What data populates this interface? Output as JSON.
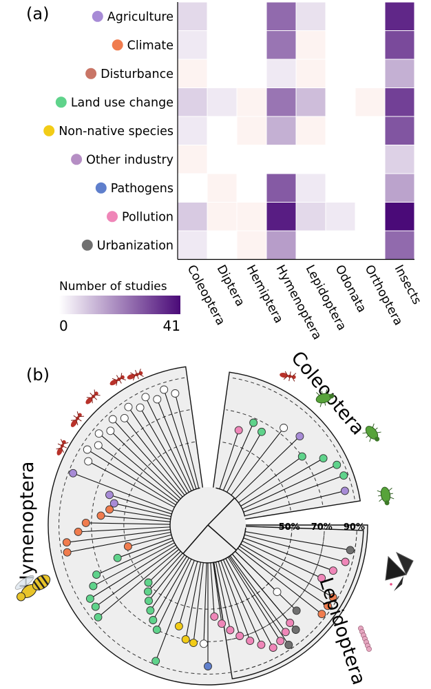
{
  "panel_a": {
    "label": "(a)",
    "threats": [
      {
        "name": "Agriculture",
        "color": "#a78bd6"
      },
      {
        "name": "Climate",
        "color": "#f07c4e"
      },
      {
        "name": "Disturbance",
        "color": "#c97566"
      },
      {
        "name": "Land use change",
        "color": "#5fd38b"
      },
      {
        "name": "Non-native species",
        "color": "#f2cc17"
      },
      {
        "name": "Other industry",
        "color": "#b58ec4"
      },
      {
        "name": "Pathogens",
        "color": "#5f7fcc"
      },
      {
        "name": "Pollution",
        "color": "#ef86b8"
      },
      {
        "name": "Urbanization",
        "color": "#707070"
      }
    ],
    "orders": [
      "Coleoptera",
      "Diptera",
      "Hemiptera",
      "Hymenoptera",
      "Lepidoptera",
      "Odonata",
      "Orthoptera",
      "Insects"
    ],
    "legend": {
      "title": "Number of studies",
      "min_label": "0",
      "max_label": "41",
      "min": 0,
      "max": 41,
      "low_color": "#ffffff",
      "high_color": "#4a0a78"
    }
  },
  "chart_data": {
    "type": "heatmap",
    "title": "",
    "rows": [
      "Agriculture",
      "Climate",
      "Disturbance",
      "Land use change",
      "Non-native species",
      "Other industry",
      "Pathogens",
      "Pollution",
      "Urbanization"
    ],
    "columns": [
      "Coleoptera",
      "Diptera",
      "Hemiptera",
      "Hymenoptera",
      "Lepidoptera",
      "Odonata",
      "Orthoptera",
      "Insects"
    ],
    "values": [
      [
        4,
        0,
        0,
        22,
        3,
        0,
        0,
        35
      ],
      [
        2,
        0,
        0,
        20,
        1,
        0,
        0,
        28
      ],
      [
        1,
        0,
        0,
        2,
        1,
        0,
        0,
        10
      ],
      [
        5,
        2,
        1,
        20,
        8,
        0,
        1,
        30
      ],
      [
        2,
        0,
        1,
        10,
        1,
        0,
        0,
        26
      ],
      [
        1,
        0,
        0,
        0,
        0,
        0,
        0,
        5
      ],
      [
        0,
        1,
        0,
        25,
        2,
        0,
        0,
        12
      ],
      [
        6,
        1,
        1,
        37,
        4,
        2,
        0,
        41
      ],
      [
        2,
        0,
        1,
        13,
        0,
        0,
        0,
        22
      ]
    ],
    "colorbar": {
      "label": "Number of studies",
      "min": 0,
      "max": 41
    }
  },
  "panel_b": {
    "label": "(b)",
    "rings": [
      "50%",
      "70%",
      "90%"
    ],
    "clades": [
      {
        "name": "Hymenoptera",
        "start_deg": 98,
        "end_deg": 360
      },
      {
        "name": "Coleoptera",
        "start_deg": 9,
        "end_deg": 82
      },
      {
        "name": "Lepidoptera",
        "start_deg": 279,
        "end_deg": 358
      }
    ],
    "species": [
      {
        "clade": "Hymenoptera",
        "deg": 104,
        "level": 0.87,
        "threat": null
      },
      {
        "clade": "Hymenoptera",
        "deg": 108,
        "level": 0.93,
        "threat": null
      },
      {
        "clade": "Hymenoptera",
        "deg": 112,
        "level": 0.87,
        "threat": null
      },
      {
        "clade": "Hymenoptera",
        "deg": 116,
        "level": 0.93,
        "threat": null
      },
      {
        "clade": "Hymenoptera",
        "deg": 120,
        "level": 0.87,
        "threat": null
      },
      {
        "clade": "Hymenoptera",
        "deg": 124,
        "level": 0.93,
        "threat": null
      },
      {
        "clade": "Hymenoptera",
        "deg": 128,
        "level": 0.87,
        "threat": null
      },
      {
        "clade": "Hymenoptera",
        "deg": 132,
        "level": 0.93,
        "threat": null
      },
      {
        "clade": "Hymenoptera",
        "deg": 136,
        "level": 0.87,
        "threat": null
      },
      {
        "clade": "Hymenoptera",
        "deg": 140,
        "level": 0.93,
        "threat": null
      },
      {
        "clade": "Hymenoptera",
        "deg": 144,
        "level": 0.87,
        "threat": null
      },
      {
        "clade": "Hymenoptera",
        "deg": 148,
        "level": 0.93,
        "threat": null
      },
      {
        "clade": "Hymenoptera",
        "deg": 152,
        "level": 0.87,
        "threat": null
      },
      {
        "clade": "Hymenoptera",
        "deg": 159,
        "level": 0.95,
        "threat": "Agriculture"
      },
      {
        "clade": "Hymenoptera",
        "deg": 163,
        "level": 0.58,
        "threat": "Agriculture"
      },
      {
        "clade": "Hymenoptera",
        "deg": 167,
        "level": 0.52,
        "threat": "Agriculture"
      },
      {
        "clade": "Hymenoptera",
        "deg": 171,
        "level": 0.55,
        "threat": "Climate"
      },
      {
        "clade": "Hymenoptera",
        "deg": 175,
        "level": 0.62,
        "threat": "Climate"
      },
      {
        "clade": "Hymenoptera",
        "deg": 179,
        "level": 0.75,
        "threat": "Climate"
      },
      {
        "clade": "Hymenoptera",
        "deg": 183,
        "level": 0.82,
        "threat": "Climate"
      },
      {
        "clade": "Hymenoptera",
        "deg": 187,
        "level": 0.93,
        "threat": "Climate"
      },
      {
        "clade": "Hymenoptera",
        "deg": 191,
        "level": 0.94,
        "threat": "Climate"
      },
      {
        "clade": "Hymenoptera",
        "deg": 195,
        "level": 0.4,
        "threat": "Climate"
      },
      {
        "clade": "Hymenoptera",
        "deg": 200,
        "level": 0.52,
        "threat": "Land use change"
      },
      {
        "clade": "Hymenoptera",
        "deg": 204,
        "level": 0.75,
        "threat": "Land use change"
      },
      {
        "clade": "Hymenoptera",
        "deg": 208,
        "level": 0.82,
        "threat": "Land use change"
      },
      {
        "clade": "Hymenoptera",
        "deg": 212,
        "level": 0.9,
        "threat": "Land use change"
      },
      {
        "clade": "Hymenoptera",
        "deg": 216,
        "level": 0.9,
        "threat": "Land use change"
      },
      {
        "clade": "Hymenoptera",
        "deg": 220,
        "level": 0.94,
        "threat": "Land use change"
      },
      {
        "clade": "Hymenoptera",
        "deg": 224,
        "level": 0.4,
        "threat": "Land use change"
      },
      {
        "clade": "Hymenoptera",
        "deg": 228,
        "level": 0.46,
        "threat": "Land use change"
      },
      {
        "clade": "Hymenoptera",
        "deg": 232,
        "level": 0.52,
        "threat": "Land use change"
      },
      {
        "clade": "Hymenoptera",
        "deg": 236,
        "level": 0.58,
        "threat": "Land use change"
      },
      {
        "clade": "Hymenoptera",
        "deg": 240,
        "level": 0.64,
        "threat": "Land use change"
      },
      {
        "clade": "Hymenoptera",
        "deg": 244,
        "level": 0.7,
        "threat": "Land use change"
      },
      {
        "clade": "Hymenoptera",
        "deg": 249,
        "level": 0.96,
        "threat": "Land use change"
      },
      {
        "clade": "Hymenoptera",
        "deg": 254,
        "level": 0.6,
        "threat": "Non-native species"
      },
      {
        "clade": "Hymenoptera",
        "deg": 259,
        "level": 0.7,
        "threat": "Non-native species"
      },
      {
        "clade": "Hymenoptera",
        "deg": 263,
        "level": 0.72,
        "threat": "Non-native species"
      },
      {
        "clade": "Hymenoptera",
        "deg": 268,
        "level": 0.72,
        "threat": null
      },
      {
        "clade": "Hymenoptera",
        "deg": 270,
        "level": 0.92,
        "threat": "Pathogens"
      },
      {
        "clade": "Hymenoptera",
        "deg": 274,
        "level": 0.48,
        "threat": "Pollution"
      },
      {
        "clade": "Hymenoptera",
        "deg": 278,
        "level": 0.55,
        "threat": "Pollution"
      },
      {
        "clade": "Hymenoptera",
        "deg": 282,
        "level": 0.62,
        "threat": "Pollution"
      },
      {
        "clade": "Hymenoptera",
        "deg": 286,
        "level": 0.69,
        "threat": "Pollution"
      },
      {
        "clade": "Hymenoptera",
        "deg": 290,
        "level": 0.76,
        "threat": "Pollution"
      },
      {
        "clade": "Hymenoptera",
        "deg": 294,
        "level": 0.83,
        "threat": "Pollution"
      },
      {
        "clade": "Hymenoptera",
        "deg": 298,
        "level": 0.9,
        "threat": "Pollution"
      },
      {
        "clade": "Hymenoptera",
        "deg": 302,
        "level": 0.88,
        "threat": "Pollution"
      },
      {
        "clade": "Hymenoptera",
        "deg": 306,
        "level": 0.84,
        "threat": "Pollution"
      },
      {
        "clade": "Hymenoptera",
        "deg": 310,
        "level": 0.8,
        "threat": "Pollution"
      },
      {
        "clade": "Hymenoptera",
        "deg": 316,
        "level": 0.76,
        "threat": "Urbanization"
      },
      {
        "clade": "Coleoptera",
        "deg": 14,
        "level": 0.92,
        "threat": "Agriculture"
      },
      {
        "clade": "Coleoptera",
        "deg": 20,
        "level": 0.95,
        "threat": "Land use change"
      },
      {
        "clade": "Coleoptera",
        "deg": 25,
        "level": 0.93,
        "threat": "Land use change"
      },
      {
        "clade": "Coleoptera",
        "deg": 30,
        "level": 0.85,
        "threat": "Land use change"
      },
      {
        "clade": "Coleoptera",
        "deg": 36,
        "level": 0.7,
        "threat": "Land use change"
      },
      {
        "clade": "Coleoptera",
        "deg": 44,
        "level": 0.8,
        "threat": "Agriculture"
      },
      {
        "clade": "Coleoptera",
        "deg": 52,
        "level": 0.76,
        "threat": null
      },
      {
        "clade": "Coleoptera",
        "deg": 60,
        "level": 0.62,
        "threat": "Land use change"
      },
      {
        "clade": "Coleoptera",
        "deg": 66,
        "level": 0.66,
        "threat": "Land use change"
      },
      {
        "clade": "Coleoptera",
        "deg": 72,
        "level": 0.55,
        "threat": "Pollution"
      },
      {
        "clade": "Lepidoptera",
        "deg": 350,
        "level": 0.95,
        "threat": "Urbanization"
      },
      {
        "clade": "Lepidoptera",
        "deg": 345,
        "level": 0.93,
        "threat": "Pollution"
      },
      {
        "clade": "Lepidoptera",
        "deg": 340,
        "level": 0.85,
        "threat": "Pollution"
      },
      {
        "clade": "Lepidoptera",
        "deg": 335,
        "level": 0.78,
        "threat": "Pollution"
      },
      {
        "clade": "Lepidoptera",
        "deg": 330,
        "level": 0.95,
        "threat": "Climate"
      },
      {
        "clade": "Lepidoptera",
        "deg": 326,
        "level": 0.95,
        "threat": "Climate"
      },
      {
        "clade": "Lepidoptera",
        "deg": 322,
        "level": 0.95,
        "threat": "Climate"
      },
      {
        "clade": "Lepidoptera",
        "deg": 316,
        "level": 0.52,
        "threat": null
      },
      {
        "clade": "Lepidoptera",
        "deg": 310,
        "level": 0.88,
        "threat": "Urbanization"
      },
      {
        "clade": "Lepidoptera",
        "deg": 304,
        "level": 0.95,
        "threat": "Urbanization"
      }
    ]
  }
}
